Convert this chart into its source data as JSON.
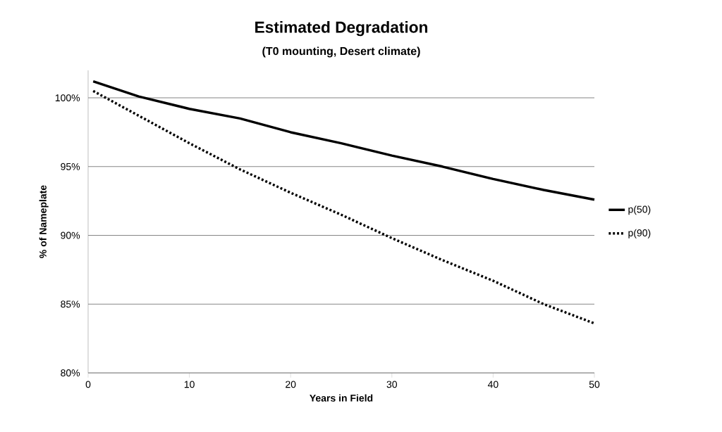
{
  "chart_data": {
    "type": "line",
    "title": "Estimated Degradation",
    "subtitle": "(T0 mounting, Desert climate)",
    "xlabel": "Years in Field",
    "ylabel": "% of Nameplate",
    "x": [
      0.5,
      5,
      10,
      15,
      20,
      25,
      30,
      35,
      40,
      45,
      50
    ],
    "series": [
      {
        "name": "p(50)",
        "color": "#000000",
        "line_style": "solid",
        "values": [
          101.2,
          100.1,
          99.2,
          98.5,
          97.5,
          96.7,
          95.8,
          95.0,
          94.1,
          93.3,
          92.6
        ]
      },
      {
        "name": "p(90)",
        "color": "#000000",
        "line_style": "dotted",
        "values": [
          100.5,
          98.7,
          96.7,
          94.8,
          93.1,
          91.5,
          89.8,
          88.2,
          86.7,
          85.0,
          83.6
        ]
      }
    ],
    "xlim": [
      0,
      50
    ],
    "ylim": [
      80,
      102
    ],
    "xticks": [
      0,
      10,
      20,
      30,
      40,
      50
    ],
    "yticks": [
      {
        "value": 80,
        "label": "80%"
      },
      {
        "value": 85,
        "label": "85%"
      },
      {
        "value": 90,
        "label": "90%"
      },
      {
        "value": 95,
        "label": "95%"
      },
      {
        "value": 100,
        "label": "100%"
      }
    ],
    "grid": "y",
    "legend": "right",
    "marker": "none"
  }
}
